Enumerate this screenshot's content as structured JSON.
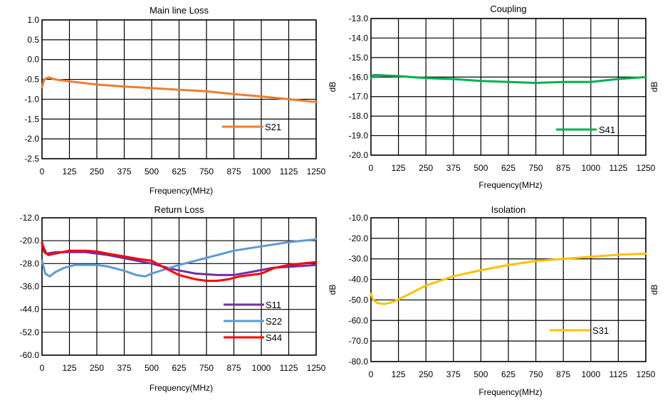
{
  "chart_data": [
    {
      "type": "line",
      "title": "Main line Loss",
      "xlabel": "Frequency(MHz)",
      "ylabel": "",
      "xlim": [
        0,
        1250
      ],
      "ylim": [
        -2.5,
        1.0
      ],
      "x_ticks": [
        "0",
        "125",
        "250",
        "375",
        "500",
        "625",
        "750",
        "875",
        "1000",
        "1125",
        "1250"
      ],
      "y_ticks": [
        "1.0",
        "0.5",
        "0.0",
        "-0.5",
        "-1.0",
        "-1.5",
        "-2.0",
        "-2.5"
      ],
      "grid": true,
      "legend_position": "bottom-right",
      "series": [
        {
          "name": "S21",
          "color": "#ED7D31",
          "x": [
            0,
            10,
            30,
            60,
            125,
            250,
            375,
            500,
            625,
            750,
            875,
            1000,
            1125,
            1250
          ],
          "y": [
            -0.7,
            -0.5,
            -0.45,
            -0.5,
            -0.55,
            -0.63,
            -0.68,
            -0.72,
            -0.76,
            -0.8,
            -0.87,
            -0.93,
            -1.0,
            -1.07
          ]
        }
      ]
    },
    {
      "type": "line",
      "title": "Coupling",
      "xlabel": "Frequency(MHz)",
      "ylabel": "dB",
      "xlim": [
        0,
        1250
      ],
      "ylim": [
        -20.0,
        -13.0
      ],
      "x_ticks": [
        "0",
        "125",
        "250",
        "375",
        "500",
        "625",
        "750",
        "875",
        "1000",
        "1125",
        "1250"
      ],
      "y_ticks": [
        "-13.0",
        "-14.0",
        "-15.0",
        "-16.0",
        "-17.0",
        "-18.0",
        "-19.0",
        "-20.0"
      ],
      "grid": true,
      "legend_position": "bottom-right",
      "series": [
        {
          "name": "S41",
          "color": "#00B050",
          "x": [
            0,
            10,
            30,
            125,
            250,
            375,
            500,
            625,
            750,
            875,
            1000,
            1125,
            1250
          ],
          "y": [
            -16.1,
            -15.9,
            -15.9,
            -15.95,
            -16.05,
            -16.1,
            -16.2,
            -16.25,
            -16.3,
            -16.25,
            -16.25,
            -16.1,
            -16.0
          ]
        }
      ]
    },
    {
      "type": "line",
      "title": "Return Loss",
      "xlabel": "Frequency(MHz)",
      "ylabel": "",
      "xlim": [
        0,
        1250
      ],
      "ylim": [
        -60.0,
        -12.0
      ],
      "x_ticks": [
        "0",
        "125",
        "250",
        "375",
        "500",
        "625",
        "750",
        "875",
        "1000",
        "1125",
        "1250"
      ],
      "y_ticks": [
        "-12.0",
        "-20.0",
        "-28.0",
        "-36.0",
        "-44.0",
        "-52.0",
        "-60.0"
      ],
      "grid": true,
      "legend_position": "bottom-right",
      "series": [
        {
          "name": "S11",
          "color": "#7030A0",
          "x": [
            0,
            20,
            60,
            125,
            200,
            300,
            400,
            500,
            600,
            700,
            800,
            875,
            950,
            1050,
            1150,
            1250
          ],
          "y": [
            -21.0,
            -24.5,
            -24.0,
            -24.0,
            -24.0,
            -25.0,
            -26.5,
            -28.0,
            -30.0,
            -31.5,
            -32.0,
            -32.0,
            -31.0,
            -29.5,
            -29.0,
            -28.5
          ]
        },
        {
          "name": "S22",
          "color": "#5B9BD5",
          "x": [
            0,
            15,
            35,
            60,
            100,
            150,
            200,
            250,
            300,
            375,
            430,
            470,
            500,
            560,
            625,
            750,
            875,
            1000,
            1125,
            1250
          ],
          "y": [
            -27.0,
            -31.5,
            -32.5,
            -31.0,
            -29.5,
            -28.5,
            -28.5,
            -28.5,
            -29.0,
            -30.5,
            -32.0,
            -32.5,
            -31.5,
            -30.0,
            -28.5,
            -26.0,
            -23.5,
            -22.0,
            -20.5,
            -19.5
          ]
        },
        {
          "name": "S44",
          "color": "#FF0000",
          "x": [
            0,
            10,
            30,
            60,
            125,
            200,
            250,
            300,
            375,
            450,
            500,
            560,
            625,
            700,
            750,
            800,
            850,
            900,
            950,
            1000,
            1060,
            1125,
            1250
          ],
          "y": [
            -20.5,
            -24.0,
            -25.0,
            -24.5,
            -23.5,
            -23.5,
            -23.8,
            -24.5,
            -25.5,
            -26.5,
            -27.0,
            -29.5,
            -32.0,
            -33.5,
            -34.0,
            -34.0,
            -33.5,
            -32.5,
            -32.0,
            -31.5,
            -29.5,
            -28.5,
            -27.5
          ]
        }
      ]
    },
    {
      "type": "line",
      "title": "Isolation",
      "xlabel": "Frequency(MHz)",
      "ylabel": "dB",
      "xlim": [
        0,
        1250
      ],
      "ylim": [
        -80.0,
        -10.0
      ],
      "x_ticks": [
        "0",
        "125",
        "250",
        "375",
        "500",
        "625",
        "750",
        "875",
        "1000",
        "1125",
        "1250"
      ],
      "y_ticks": [
        "-10.0",
        "-20.0",
        "-30.0",
        "-40.0",
        "-50.0",
        "-60.0",
        "-70.0",
        "-80.0"
      ],
      "grid": true,
      "legend_position": "bottom-right",
      "series": [
        {
          "name": "S31",
          "color": "#FFC000",
          "x": [
            0,
            10,
            30,
            60,
            100,
            150,
            250,
            375,
            500,
            625,
            750,
            875,
            1000,
            1125,
            1250
          ],
          "y": [
            -47.0,
            -50.0,
            -51.5,
            -52.0,
            -51.0,
            -48.5,
            -43.0,
            -38.5,
            -35.5,
            -33.0,
            -31.0,
            -30.0,
            -29.0,
            -28.0,
            -27.5
          ]
        }
      ]
    }
  ]
}
